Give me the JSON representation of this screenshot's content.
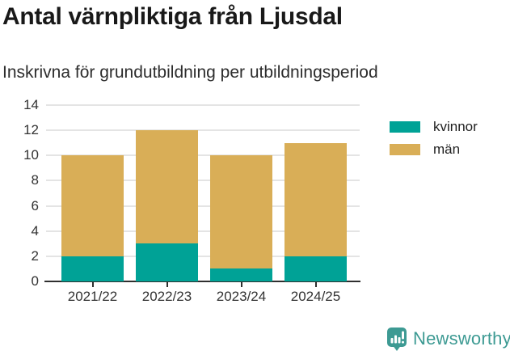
{
  "title": "Antal värnpliktiga från Ljusdal",
  "subtitle": "Inskrivna för grundutbildning per utbildningsperiod",
  "chart_data": {
    "type": "bar",
    "stacked": true,
    "title": "Antal värnpliktiga från Ljusdal",
    "subtitle": "Inskrivna för grundutbildning per utbildningsperiod",
    "categories": [
      "2021/22",
      "2022/23",
      "2023/24",
      "2024/25"
    ],
    "series": [
      {
        "name": "kvinnor",
        "color": "#00a296",
        "values": [
          2,
          3,
          1,
          2
        ]
      },
      {
        "name": "män",
        "color": "#d9ae57",
        "values": [
          8,
          9,
          9,
          9
        ]
      }
    ],
    "stack_totals": [
      10,
      12,
      10,
      11
    ],
    "xlabel": "",
    "ylabel": "",
    "ylim": [
      0,
      14
    ],
    "yticks": [
      0,
      2,
      4,
      6,
      8,
      10,
      12,
      14
    ],
    "grid": true,
    "legend_position": "right"
  },
  "colors": {
    "kvinnor": "#00a296",
    "man": "#d9ae57",
    "gridline": "#e4e4e4",
    "axis": "#2f2f2f",
    "logo_teal": "#3d9a93"
  },
  "branding": {
    "logo_text": "Newsworthy",
    "logo_icon": "bar-chart-badge-icon"
  }
}
